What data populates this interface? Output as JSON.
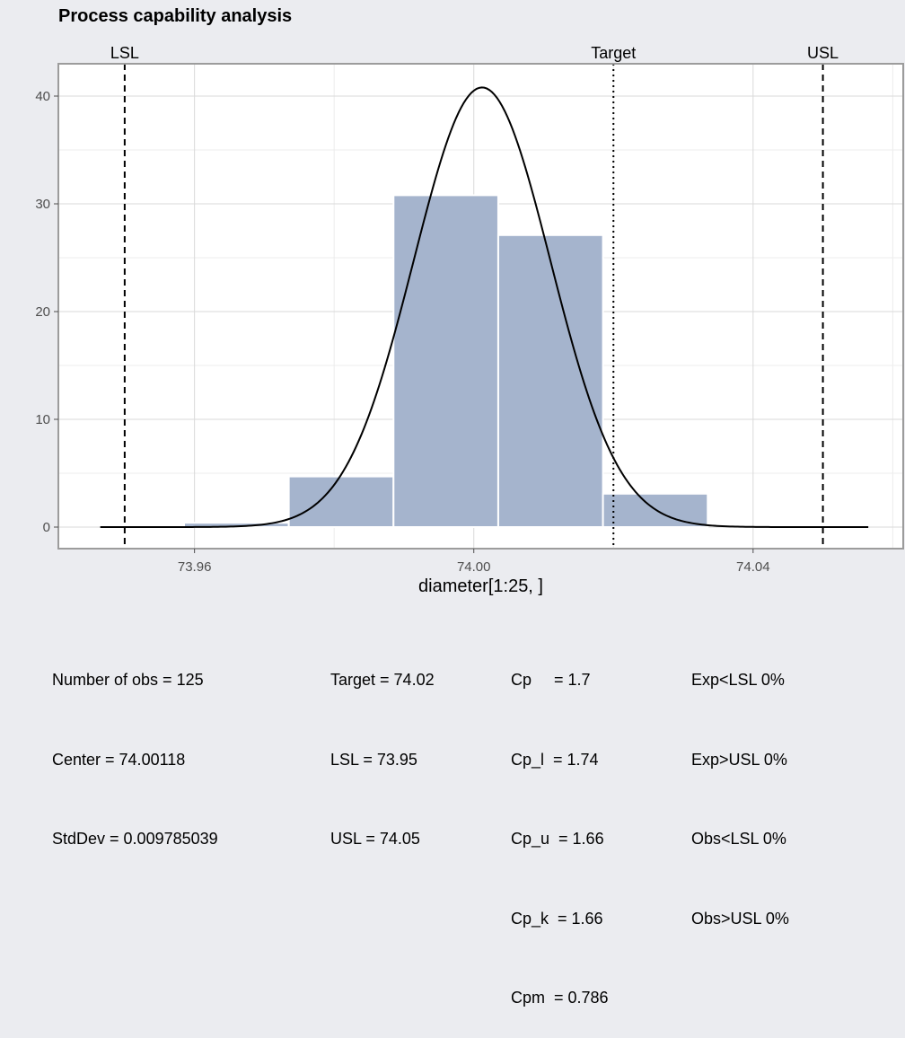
{
  "chart_data": {
    "type": "bar",
    "title": "Process capability analysis",
    "xlabel": "diameter[1:25, ]",
    "ylabel": "",
    "xlim": [
      73.9405,
      74.0615
    ],
    "ylim": [
      -2,
      43
    ],
    "x_ticks": [
      {
        "value": 73.96,
        "label": "73.96"
      },
      {
        "value": 74.0,
        "label": "74.00"
      },
      {
        "value": 74.04,
        "label": "74.04"
      }
    ],
    "y_ticks": [
      {
        "value": 0,
        "label": "0"
      },
      {
        "value": 10,
        "label": "10"
      },
      {
        "value": 20,
        "label": "20"
      },
      {
        "value": 30,
        "label": "30"
      },
      {
        "value": 40,
        "label": "40"
      }
    ],
    "histogram": {
      "bins": [
        {
          "x0": 73.9585,
          "x1": 73.9735,
          "value": 0.4
        },
        {
          "x0": 73.9735,
          "x1": 73.9885,
          "value": 4.7
        },
        {
          "x0": 73.9885,
          "x1": 74.0035,
          "value": 30.8
        },
        {
          "x0": 74.0035,
          "x1": 74.0185,
          "value": 27.1
        },
        {
          "x0": 74.0185,
          "x1": 74.0335,
          "value": 3.1
        }
      ],
      "color": "#a5b4cd"
    },
    "density_curve": {
      "mean": 74.00118,
      "sd": 0.009785039,
      "scale": 40.8,
      "x_range": [
        73.9465,
        74.0565
      ],
      "color": "#000000"
    },
    "reference_lines": [
      {
        "name": "LSL",
        "label": "LSL",
        "value": 73.95,
        "style": "dashed"
      },
      {
        "name": "target",
        "label": "Target",
        "value": 74.02,
        "style": "dotted"
      },
      {
        "name": "USL",
        "label": "USL",
        "value": 74.05,
        "style": "dashed"
      }
    ],
    "grid": true
  },
  "stats": {
    "col1": [
      "Number of obs = 125",
      "Center = 74.00118",
      "StdDev = 0.009785039"
    ],
    "col2": [
      "Target = 74.02",
      "LSL = 73.95",
      "USL = 74.05"
    ],
    "col3": [
      "Cp     = 1.7",
      "Cp_l  = 1.74",
      "Cp_u  = 1.66",
      "Cp_k  = 1.66",
      "Cpm  = 0.786"
    ],
    "col4": [
      "Exp<LSL 0%",
      "Exp>USL 0%",
      "Obs<LSL 0%",
      "Obs>USL 0%"
    ]
  }
}
